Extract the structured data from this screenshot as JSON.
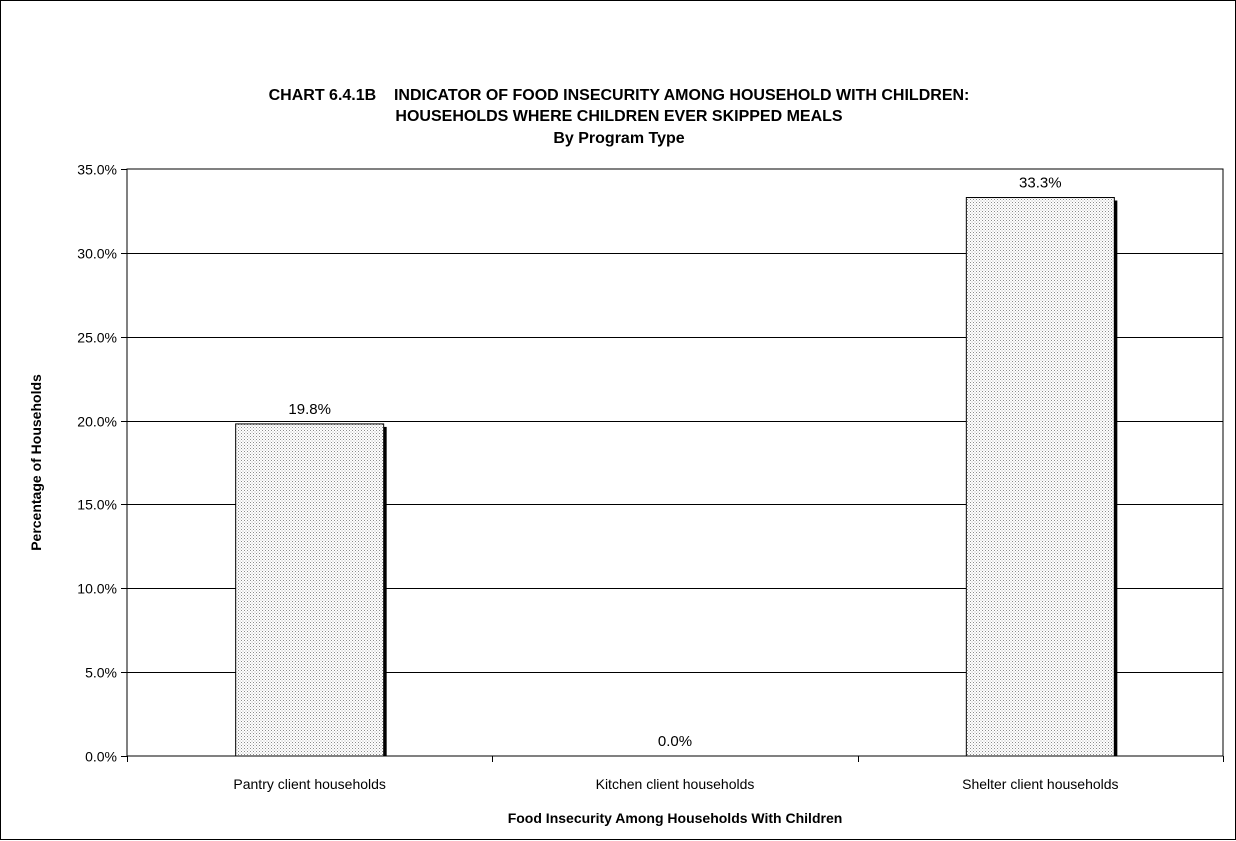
{
  "chart_data": {
    "type": "bar",
    "title_lines": [
      "CHART 6.4.1B    INDICATOR OF FOOD INSECURITY AMONG HOUSEHOLD WITH CHILDREN:",
      "HOUSEHOLDS WHERE CHILDREN EVER SKIPPED MEALS",
      "By Program Type"
    ],
    "categories": [
      "Pantry client households",
      "Kitchen client households",
      "Shelter client households"
    ],
    "values": [
      19.8,
      0.0,
      33.3
    ],
    "data_labels": [
      "19.8%",
      "0.0%",
      "33.3%"
    ],
    "xlabel": "Food Insecurity Among Households With Children",
    "ylabel": "Percentage of Households",
    "ylim": [
      0,
      35
    ],
    "yticks": [
      0,
      5,
      10,
      15,
      20,
      25,
      30,
      35
    ],
    "ytick_labels": [
      "0.0%",
      "5.0%",
      "10.0%",
      "15.0%",
      "20.0%",
      "25.0%",
      "30.0%",
      "35.0%"
    ],
    "grid": true,
    "legend": "none",
    "bar_fill": "#e6e6e6",
    "bar_pattern": "dotted",
    "bar_edge": "#000000"
  }
}
